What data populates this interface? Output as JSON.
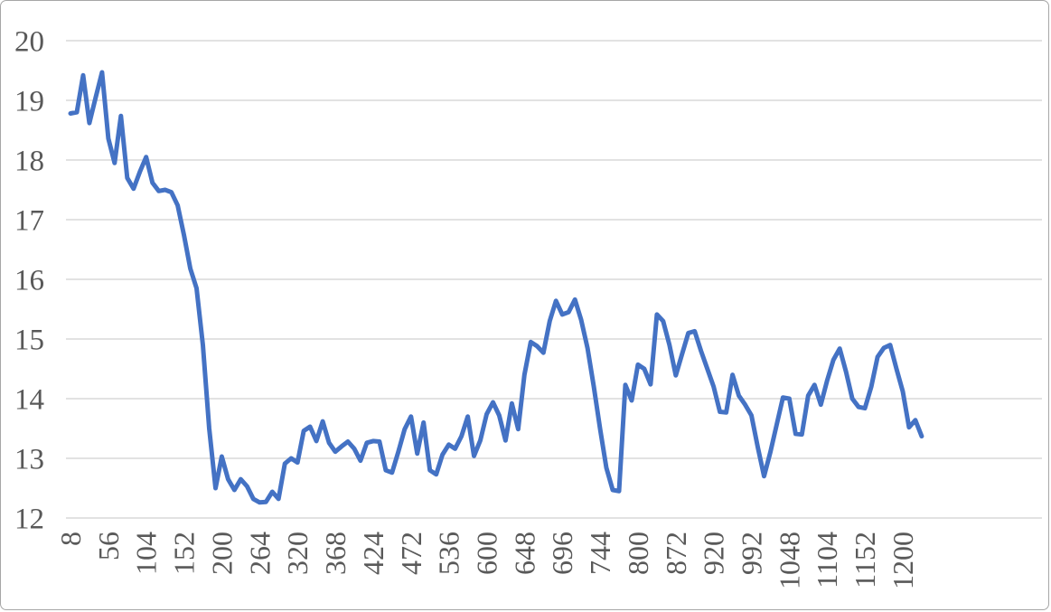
{
  "chart_data": {
    "type": "line",
    "title": "",
    "xlabel": "",
    "ylabel": "",
    "grid": "horizontal",
    "legend": "none",
    "ylim": [
      12,
      20
    ],
    "y_ticks": [
      12,
      13,
      14,
      15,
      16,
      17,
      18,
      19,
      20
    ],
    "x_tick_labels": [
      "8",
      "56",
      "104",
      "152",
      "200",
      "264",
      "320",
      "368",
      "424",
      "472",
      "536",
      "600",
      "648",
      "696",
      "744",
      "800",
      "872",
      "920",
      "992",
      "1048",
      "1104",
      "1152",
      "1200"
    ],
    "label_every_n_points": 6,
    "series": [
      {
        "name": "series-1",
        "color": "#4472C4",
        "values": [
          18.78,
          18.8,
          19.42,
          18.62,
          19.05,
          19.47,
          18.36,
          17.95,
          18.74,
          17.7,
          17.52,
          17.8,
          18.05,
          17.62,
          17.48,
          17.5,
          17.46,
          17.24,
          16.74,
          16.18,
          15.85,
          14.9,
          13.5,
          12.5,
          13.03,
          12.65,
          12.47,
          12.65,
          12.53,
          12.32,
          12.26,
          12.27,
          12.44,
          12.32,
          12.91,
          13.0,
          12.93,
          13.46,
          13.53,
          13.29,
          13.62,
          13.26,
          13.11,
          13.2,
          13.28,
          13.16,
          12.96,
          13.26,
          13.29,
          13.28,
          12.8,
          12.76,
          13.11,
          13.49,
          13.7,
          13.08,
          13.6,
          12.8,
          12.73,
          13.06,
          13.23,
          13.16,
          13.37,
          13.7,
          13.04,
          13.3,
          13.74,
          13.94,
          13.72,
          13.3,
          13.92,
          13.49,
          14.4,
          14.95,
          14.88,
          14.77,
          15.3,
          15.64,
          15.41,
          15.45,
          15.66,
          15.32,
          14.85,
          14.2,
          13.49,
          12.84,
          12.47,
          12.45,
          14.23,
          13.97,
          14.57,
          14.5,
          14.24,
          15.41,
          15.3,
          14.9,
          14.39,
          14.75,
          15.1,
          15.13,
          14.8,
          14.5,
          14.2,
          13.78,
          13.77,
          14.4,
          14.05,
          13.9,
          13.72,
          13.19,
          12.7,
          13.1,
          13.56,
          14.02,
          14.0,
          13.41,
          13.4,
          14.05,
          14.23,
          13.9,
          14.3,
          14.65,
          14.84,
          14.45,
          14.0,
          13.86,
          13.84,
          14.2,
          14.7,
          14.85,
          14.9,
          14.5,
          14.12,
          13.52,
          13.64,
          13.37
        ]
      }
    ],
    "colors": {
      "line": "#4472C4",
      "gridline": "#D9D9D9",
      "axis_line": "#D9D9D9",
      "tick_label": "#595959",
      "frame_border": "#A6A6A6",
      "background": "#FFFFFF"
    }
  }
}
